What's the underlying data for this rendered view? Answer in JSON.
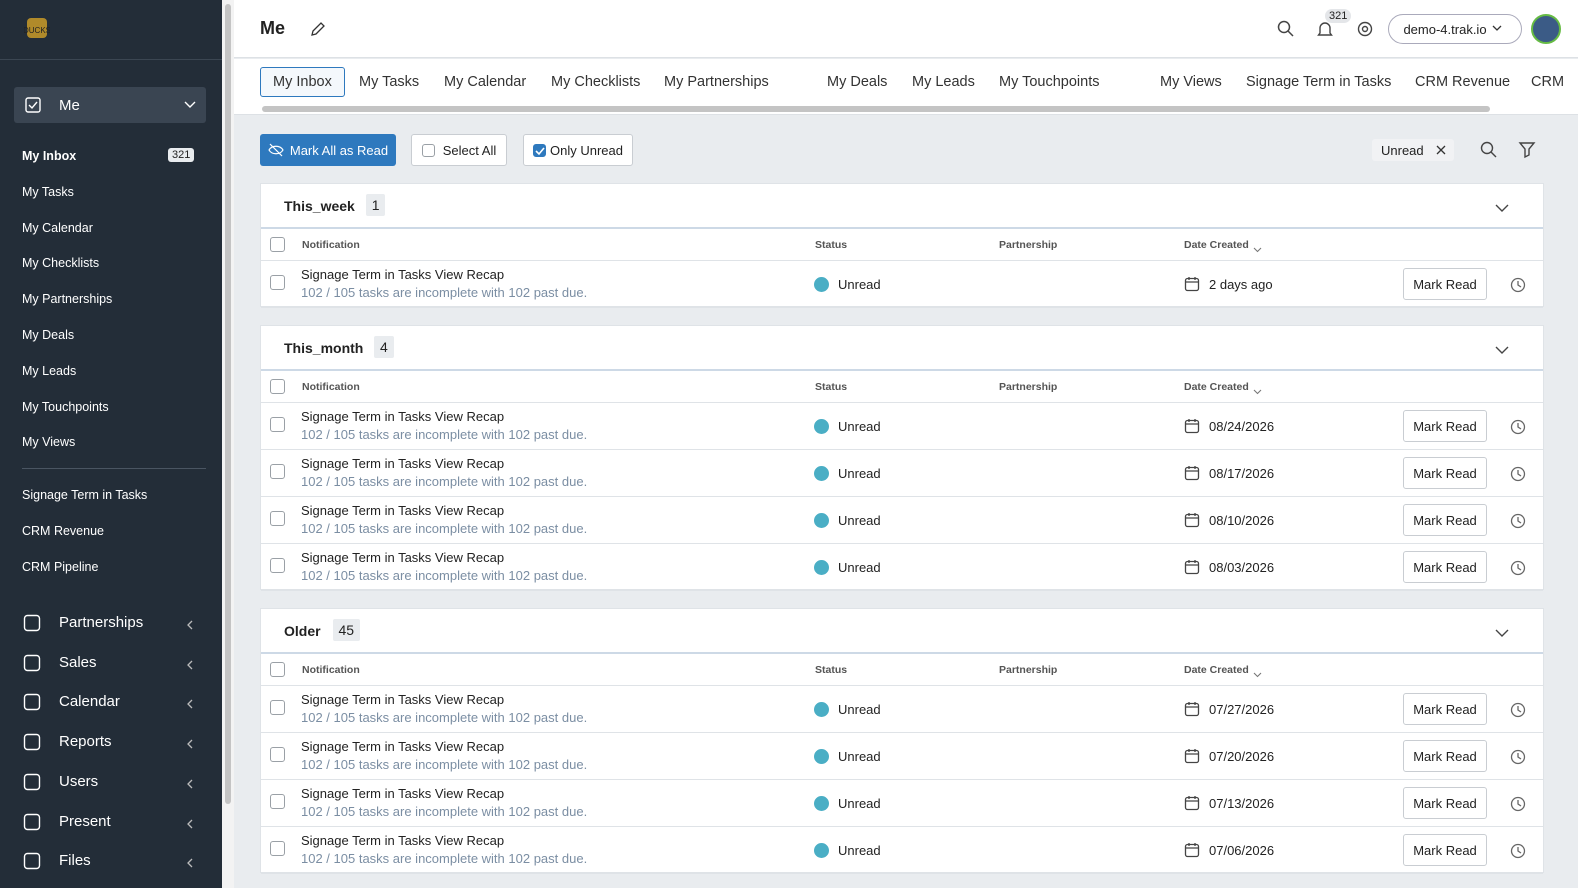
{
  "sidebar": {
    "selector": "Me",
    "me_items": [
      {
        "label": "My Inbox",
        "badge": 321
      },
      {
        "label": "My Tasks"
      },
      {
        "label": "My Calendar"
      },
      {
        "label": "My Checklists"
      },
      {
        "label": "My Partnerships"
      },
      {
        "label": "My Deals"
      },
      {
        "label": "My Leads"
      },
      {
        "label": "My Touchpoints"
      },
      {
        "label": "My Views"
      }
    ],
    "views": [
      "Signage Term in Tasks",
      "CRM Revenue",
      "CRM Pipeline"
    ],
    "sections": [
      "Partnerships",
      "Sales",
      "Calendar",
      "Reports",
      "Users",
      "Present",
      "Files"
    ]
  },
  "header": {
    "title": "Me",
    "notification_count": 321,
    "workspace": "demo-4.trak.io"
  },
  "tabs": [
    "My Inbox",
    "My Tasks",
    "My Calendar",
    "My Checklists",
    "My Partnerships",
    "My Deals",
    "My Leads",
    "My Touchpoints",
    "My Views",
    "Signage Term in Tasks",
    "CRM Revenue",
    "CRM"
  ],
  "toolbar": {
    "mark_all": "Mark All as Read",
    "select_all": "Select All",
    "only_unread": "Only Unread",
    "filter_chip": "Unread"
  },
  "columns": [
    "Notification",
    "Status",
    "Partnership",
    "Date Created"
  ],
  "row_action": "Mark Read",
  "groups": [
    {
      "name": "This_week",
      "count": 1,
      "rows": [
        {
          "title": "Signage Term in Tasks View Recap",
          "detail": "102 / 105 tasks are incomplete with 102 past due.",
          "status": "Unread",
          "date": "2 days ago"
        }
      ]
    },
    {
      "name": "This_month",
      "count": 4,
      "rows": [
        {
          "title": "Signage Term in Tasks View Recap",
          "detail": "102 / 105 tasks are incomplete with 102 past due.",
          "status": "Unread",
          "date": "08/24/2026"
        },
        {
          "title": "Signage Term in Tasks View Recap",
          "detail": "102 / 105 tasks are incomplete with 102 past due.",
          "status": "Unread",
          "date": "08/17/2026"
        },
        {
          "title": "Signage Term in Tasks View Recap",
          "detail": "102 / 105 tasks are incomplete with 102 past due.",
          "status": "Unread",
          "date": "08/10/2026"
        },
        {
          "title": "Signage Term in Tasks View Recap",
          "detail": "102 / 105 tasks are incomplete with 102 past due.",
          "status": "Unread",
          "date": "08/03/2026"
        }
      ]
    },
    {
      "name": "Older",
      "count": 45,
      "rows": [
        {
          "title": "Signage Term in Tasks View Recap",
          "detail": "102 / 105 tasks are incomplete with 102 past due.",
          "status": "Unread",
          "date": "07/27/2026"
        },
        {
          "title": "Signage Term in Tasks View Recap",
          "detail": "102 / 105 tasks are incomplete with 102 past due.",
          "status": "Unread",
          "date": "07/20/2026"
        },
        {
          "title": "Signage Term in Tasks View Recap",
          "detail": "102 / 105 tasks are incomplete with 102 past due.",
          "status": "Unread",
          "date": "07/13/2026"
        },
        {
          "title": "Signage Term in Tasks View Recap",
          "detail": "102 / 105 tasks are incomplete with 102 past due.",
          "status": "Unread",
          "date": "07/06/2026"
        }
      ]
    }
  ]
}
